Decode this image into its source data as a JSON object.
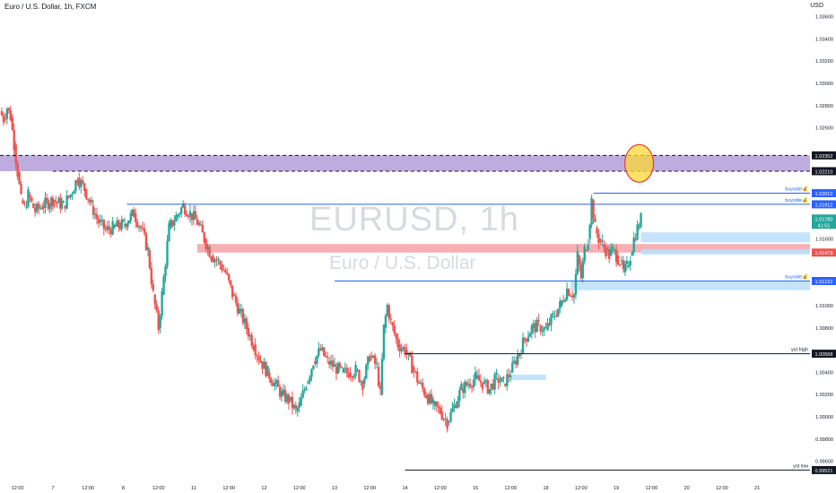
{
  "header": {
    "title": "Euro / U.S. Dollar, 1h, FXCM",
    "currency": "USD"
  },
  "watermark": {
    "symbol": "EURUSD, 1h",
    "name": "Euro / U.S. Dollar"
  },
  "colors": {
    "up": "#26a69a",
    "down": "#ef5350",
    "zone_purple": "#b39ddb",
    "zone_red": "#f7a1a6",
    "zone_blue": "#bbdefb",
    "level_blue": "#2962ff",
    "highlight": "#fdd835"
  },
  "chart_data": {
    "type": "candlestick",
    "symbol": "EURUSD",
    "timeframe": "1h",
    "ylim": [
      0.9946,
      1.0375
    ],
    "y_ticks": [
      1.036,
      1.034,
      1.032,
      1.03,
      1.028,
      1.026,
      1.024,
      1.022,
      1.02,
      1.018,
      1.016,
      1.014,
      1.012,
      1.01,
      1.008,
      1.006,
      1.004,
      1.002,
      1.0,
      0.998,
      0.996
    ],
    "y_tick_labels": [
      "1.03600",
      "1.03400",
      "1.03200",
      "1.03000",
      "1.02800",
      "1.02600",
      "",
      "",
      "",
      "",
      "1.01600",
      "",
      "",
      "1.01000",
      "1.00800",
      "",
      "1.00400",
      "1.00200",
      "1.00000",
      "0.99800",
      "0.99600"
    ],
    "x_ticks": [
      {
        "x": 0.5,
        "label": "12:00"
      },
      {
        "x": 1.5,
        "label": "7"
      },
      {
        "x": 2.5,
        "label": "12:00"
      },
      {
        "x": 3.5,
        "label": "8"
      },
      {
        "x": 4.5,
        "label": "12:00"
      },
      {
        "x": 5.5,
        "label": "11"
      },
      {
        "x": 6.5,
        "label": "12:00"
      },
      {
        "x": 7.5,
        "label": "12"
      },
      {
        "x": 8.5,
        "label": "12:00"
      },
      {
        "x": 9.5,
        "label": "13"
      },
      {
        "x": 10.5,
        "label": "12:00"
      },
      {
        "x": 11.5,
        "label": "14"
      },
      {
        "x": 12.5,
        "label": "12:00"
      },
      {
        "x": 13.5,
        "label": "15"
      },
      {
        "x": 14.5,
        "label": "12:00"
      },
      {
        "x": 15.5,
        "label": "18"
      },
      {
        "x": 16.5,
        "label": "12:00"
      },
      {
        "x": 17.5,
        "label": "19"
      },
      {
        "x": 18.5,
        "label": "12:00"
      },
      {
        "x": 19.5,
        "label": "20"
      },
      {
        "x": 20.5,
        "label": "12:00"
      },
      {
        "x": 21.5,
        "label": "21"
      }
    ],
    "xlim": [
      0,
      23
    ],
    "close_path": [
      [
        0.0,
        1.0275
      ],
      [
        0.1,
        1.0268
      ],
      [
        0.2,
        1.0278
      ],
      [
        0.3,
        1.027
      ],
      [
        0.4,
        1.0245
      ],
      [
        0.5,
        1.022
      ],
      [
        0.6,
        1.0195
      ],
      [
        0.7,
        1.0188
      ],
      [
        0.8,
        1.02
      ],
      [
        0.9,
        1.0192
      ],
      [
        1.0,
        1.0185
      ],
      [
        1.2,
        1.019
      ],
      [
        1.5,
        1.0195
      ],
      [
        1.8,
        1.019
      ],
      [
        2.0,
        1.02
      ],
      [
        2.2,
        1.0215
      ],
      [
        2.4,
        1.0205
      ],
      [
        2.6,
        1.019
      ],
      [
        2.8,
        1.0175
      ],
      [
        3.0,
        1.0168
      ],
      [
        3.2,
        1.017
      ],
      [
        3.5,
        1.0173
      ],
      [
        3.8,
        1.0183
      ],
      [
        4.0,
        1.017
      ],
      [
        4.2,
        1.015
      ],
      [
        4.35,
        1.011
      ],
      [
        4.5,
        1.008
      ],
      [
        4.6,
        1.011
      ],
      [
        4.8,
        1.017
      ],
      [
        5.0,
        1.018
      ],
      [
        5.2,
        1.019
      ],
      [
        5.4,
        1.0183
      ],
      [
        5.6,
        1.0175
      ],
      [
        5.8,
        1.016
      ],
      [
        6.0,
        1.0145
      ],
      [
        6.2,
        1.014
      ],
      [
        6.4,
        1.013
      ],
      [
        6.6,
        1.011
      ],
      [
        6.8,
        1.0095
      ],
      [
        7.0,
        1.008
      ],
      [
        7.2,
        1.0065
      ],
      [
        7.4,
        1.005
      ],
      [
        7.6,
        1.004
      ],
      [
        7.8,
        1.003
      ],
      [
        8.0,
        1.002
      ],
      [
        8.2,
        1.0015
      ],
      [
        8.4,
        1.0005
      ],
      [
        8.5,
        1.001
      ],
      [
        8.7,
        1.003
      ],
      [
        8.9,
        1.005
      ],
      [
        9.1,
        1.006
      ],
      [
        9.3,
        1.005
      ],
      [
        9.5,
        1.0045
      ],
      [
        9.7,
        1.004
      ],
      [
        9.9,
        1.004
      ],
      [
        10.1,
        1.0042
      ],
      [
        10.3,
        1.003
      ],
      [
        10.5,
        1.0055
      ],
      [
        10.7,
        1.0045
      ],
      [
        10.8,
        1.002
      ],
      [
        10.9,
        1.008
      ],
      [
        11.0,
        1.01
      ],
      [
        11.1,
        1.0085
      ],
      [
        11.3,
        1.0065
      ],
      [
        11.5,
        1.006
      ],
      [
        11.7,
        1.0045
      ],
      [
        11.9,
        1.003
      ],
      [
        12.1,
        1.002
      ],
      [
        12.3,
        1.001
      ],
      [
        12.5,
        1.0005
      ],
      [
        12.7,
        0.9995
      ],
      [
        12.9,
        1.001
      ],
      [
        13.1,
        1.0025
      ],
      [
        13.3,
        1.003
      ],
      [
        13.5,
        1.0035
      ],
      [
        13.7,
        1.003
      ],
      [
        13.9,
        1.0025
      ],
      [
        14.1,
        1.0035
      ],
      [
        14.3,
        1.003
      ],
      [
        14.5,
        1.004
      ],
      [
        14.7,
        1.0055
      ],
      [
        14.9,
        1.007
      ],
      [
        15.1,
        1.008
      ],
      [
        15.3,
        1.0082
      ],
      [
        15.5,
        1.0078
      ],
      [
        15.7,
        1.009
      ],
      [
        15.9,
        1.01
      ],
      [
        16.1,
        1.0115
      ],
      [
        16.3,
        1.011
      ],
      [
        16.4,
        1.0145
      ],
      [
        16.5,
        1.0125
      ],
      [
        16.6,
        1.015
      ],
      [
        16.7,
        1.016
      ],
      [
        16.8,
        1.0195
      ],
      [
        16.9,
        1.017
      ],
      [
        17.0,
        1.016
      ],
      [
        17.1,
        1.0155
      ],
      [
        17.2,
        1.015
      ],
      [
        17.3,
        1.0145
      ],
      [
        17.4,
        1.015
      ],
      [
        17.5,
        1.0145
      ],
      [
        17.6,
        1.014
      ],
      [
        17.7,
        1.013
      ],
      [
        17.8,
        1.0135
      ],
      [
        17.9,
        1.0145
      ],
      [
        18.0,
        1.016
      ],
      [
        18.1,
        1.017
      ],
      [
        18.2,
        1.0178
      ]
    ],
    "horizontal_levels": [
      {
        "name": "buyside-top",
        "y": 1.02012,
        "x_start": 16.85,
        "color": "#2962ff",
        "label": "buyside💰",
        "price_label": "1.02012"
      },
      {
        "name": "buyside-mid",
        "y": 1.01912,
        "x_start": 3.6,
        "color": "#2962ff",
        "label": "buyside💰",
        "price_label": "1.01912"
      },
      {
        "name": "buyside-low",
        "y": 1.01222,
        "x_start": 9.5,
        "color": "#2962ff",
        "label": "buyside💰",
        "price_label": "1.01222"
      },
      {
        "name": "yst-high",
        "y": 1.00568,
        "x_start": 11.5,
        "color": "#131722",
        "label": "yst high",
        "price_label": "1.00568"
      },
      {
        "name": "yst-low",
        "y": 0.99521,
        "x_start": 11.5,
        "color": "#131722",
        "label": "yst low",
        "price_label": "0.99521"
      },
      {
        "name": "purple-top",
        "y": 1.02352,
        "x_start": 0,
        "color": "#131722",
        "dashed": true,
        "label": "",
        "price_label": "1.02352"
      },
      {
        "name": "purple-bottom",
        "y": 1.0221,
        "x_start": 1.5,
        "color": "#131722",
        "dashed": true,
        "label": "",
        "price_label": "1.02210"
      }
    ],
    "zones": [
      {
        "name": "purple-zone",
        "y_top": 1.02352,
        "y_bottom": 1.0221,
        "x_start": 0,
        "color": "#b39ddb"
      },
      {
        "name": "red-zone",
        "y_top": 1.01555,
        "y_bottom": 1.01478,
        "x_start": 5.6,
        "color": "#f7a1a6"
      },
      {
        "name": "blue-zone-upper",
        "y_top": 1.0166,
        "y_bottom": 1.0157,
        "x_start": 18.2,
        "color": "#bbdefb"
      },
      {
        "name": "blue-zone-lower",
        "y_top": 1.01222,
        "y_bottom": 1.0114,
        "x_start": 16.2,
        "color": "#bbdefb"
      },
      {
        "name": "blue-zone-mid",
        "y_top": 1.0151,
        "y_bottom": 1.0146,
        "x_start": 18.2,
        "color": "#bbdefb"
      },
      {
        "name": "blue-zone-small",
        "y_top": 1.0038,
        "y_bottom": 1.0033,
        "x_start": 14.5,
        "x_end": 15.5,
        "color": "#bbdefb"
      }
    ],
    "current_price": {
      "value": "1.01780",
      "countdown": "41:51"
    },
    "highlight_ellipse": {
      "x": 18.15,
      "y": 1.0228
    },
    "extra_price_label": {
      "value": "1.01478"
    }
  }
}
